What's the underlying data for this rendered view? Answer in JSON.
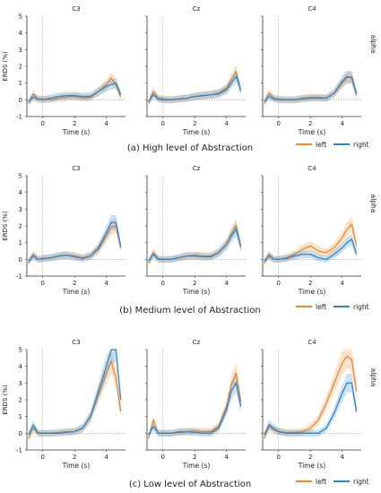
{
  "colors": {
    "left": "#f0882a",
    "right": "#2f86c7"
  },
  "chart_data": [
    {
      "type": "line",
      "caption": "(a) High level of Abstraction",
      "band_label": "alpha",
      "ylabel": "ERDS (%)",
      "xlabel": "Time (s)",
      "ylim": [
        -1,
        5
      ],
      "xlim": [
        -1,
        5.2
      ],
      "yticks": [
        "-1",
        "0",
        "1",
        "2",
        "3",
        "4",
        "5"
      ],
      "xticks": [
        "0",
        "2",
        "4"
      ],
      "legend": [
        "left",
        "right"
      ],
      "panels": [
        {
          "title": "C3",
          "x": [
            -0.9,
            -0.6,
            -0.3,
            0,
            0.5,
            1,
            1.5,
            2,
            2.5,
            3,
            3.5,
            4,
            4.3,
            4.6,
            4.9
          ],
          "left": [
            -0.2,
            0.35,
            0.05,
            0.05,
            0,
            0.1,
            0.15,
            0.2,
            0.1,
            0.15,
            0.5,
            0.9,
            1.3,
            0.9,
            0.2
          ],
          "right": [
            -0.1,
            0.15,
            0.05,
            0,
            0.1,
            0.2,
            0.25,
            0.25,
            0.2,
            0.2,
            0.5,
            0.8,
            0.9,
            1.0,
            0.3
          ]
        },
        {
          "title": "Cz",
          "x": [
            -0.9,
            -0.6,
            -0.3,
            0,
            0.5,
            1,
            1.5,
            2,
            2.5,
            3,
            3.5,
            4,
            4.3,
            4.6,
            4.9
          ],
          "left": [
            -0.2,
            0.5,
            0.1,
            0.05,
            0,
            0.05,
            0.1,
            0.2,
            0.25,
            0.3,
            0.4,
            0.7,
            1.2,
            1.7,
            0.5
          ],
          "right": [
            -0.1,
            0.3,
            0.05,
            0,
            0,
            0.05,
            0.1,
            0.2,
            0.25,
            0.3,
            0.35,
            0.6,
            1.0,
            1.4,
            0.6
          ]
        },
        {
          "title": "C4",
          "x": [
            -0.9,
            -0.6,
            -0.3,
            0,
            0.5,
            1,
            1.5,
            2,
            2.5,
            3,
            3.5,
            4,
            4.3,
            4.6,
            4.9
          ],
          "left": [
            -0.2,
            0.4,
            0.1,
            0.05,
            0,
            0,
            0.1,
            0.15,
            0.15,
            0.1,
            0.4,
            1.0,
            1.3,
            1.4,
            0.4
          ],
          "right": [
            -0.1,
            0.2,
            0.05,
            0,
            0,
            0,
            0.05,
            0.1,
            0.1,
            0.1,
            0.4,
            1.1,
            1.4,
            1.3,
            0.3
          ]
        }
      ]
    },
    {
      "type": "line",
      "caption": "(b) Medium level of Abstraction",
      "band_label": "alpha",
      "ylabel": "ERDS (%)",
      "xlabel": "Time (s)",
      "ylim": [
        -1,
        5
      ],
      "xlim": [
        -1,
        5.2
      ],
      "yticks": [
        "-1",
        "0",
        "1",
        "2",
        "3",
        "4",
        "5"
      ],
      "xticks": [
        "0",
        "2",
        "4"
      ],
      "legend": [
        "left",
        "right"
      ],
      "panels": [
        {
          "title": "C3",
          "x": [
            -0.9,
            -0.6,
            -0.3,
            0,
            0.5,
            1,
            1.5,
            2,
            2.5,
            3,
            3.5,
            4,
            4.3,
            4.6,
            4.9
          ],
          "left": [
            -0.2,
            0.3,
            0,
            0.05,
            0.1,
            0.2,
            0.25,
            0.2,
            0.1,
            0.2,
            0.6,
            1.4,
            1.9,
            2.0,
            0.8
          ],
          "right": [
            -0.1,
            0.2,
            0,
            0.05,
            0.1,
            0.2,
            0.25,
            0.15,
            0.05,
            0.2,
            0.7,
            1.6,
            2.2,
            2.2,
            0.7
          ]
        },
        {
          "title": "Cz",
          "x": [
            -0.9,
            -0.6,
            -0.3,
            0,
            0.5,
            1,
            1.5,
            2,
            2.5,
            3,
            3.5,
            4,
            4.3,
            4.6,
            4.9
          ],
          "left": [
            -0.2,
            0.4,
            0.05,
            0,
            0,
            0.1,
            0.2,
            0.25,
            0.2,
            0.2,
            0.4,
            0.9,
            1.5,
            2.0,
            0.7
          ],
          "right": [
            -0.1,
            0.3,
            0,
            0,
            0,
            0.1,
            0.2,
            0.2,
            0.15,
            0.15,
            0.4,
            0.9,
            1.4,
            1.8,
            0.8
          ]
        },
        {
          "title": "C4",
          "x": [
            -0.9,
            -0.6,
            -0.3,
            0,
            0.5,
            1,
            1.5,
            2,
            2.5,
            3,
            3.5,
            4,
            4.3,
            4.6,
            4.9
          ],
          "left": [
            -0.2,
            0.3,
            0,
            0,
            0.1,
            0.3,
            0.6,
            0.8,
            0.5,
            0.4,
            0.7,
            1.3,
            1.8,
            2.1,
            0.8
          ],
          "right": [
            -0.1,
            0.2,
            0,
            0,
            0.05,
            0.2,
            0.3,
            0.3,
            0.1,
            0.0,
            0.3,
            0.7,
            1.0,
            1.2,
            0.3
          ]
        }
      ]
    },
    {
      "type": "line",
      "caption": "(c) Low level of Abstraction",
      "band_label": "alpha",
      "ylabel": "ERDS (%)",
      "xlabel": "Time (s)",
      "ylim": [
        -1,
        5
      ],
      "xlim": [
        -1,
        5.2
      ],
      "yticks": [
        "-1",
        "0",
        "1",
        "2",
        "3",
        "4",
        "5"
      ],
      "xticks": [
        "0",
        "2",
        "4"
      ],
      "legend": [
        "left",
        "right"
      ],
      "panels": [
        {
          "title": "C3",
          "x": [
            -0.9,
            -0.6,
            -0.3,
            0,
            0.5,
            1,
            1.5,
            2,
            2.5,
            3,
            3.5,
            4,
            4.3,
            4.6,
            4.9
          ],
          "left": [
            -0.3,
            0.3,
            0,
            0,
            0,
            0.05,
            0.1,
            0.1,
            0.3,
            1.0,
            2.3,
            3.6,
            4.3,
            3.3,
            1.3
          ],
          "right": [
            -0.1,
            0.5,
            0,
            0,
            0,
            0,
            0.05,
            0.1,
            0.3,
            1.0,
            2.5,
            4.0,
            5.0,
            5.0,
            2.0
          ]
        },
        {
          "title": "Cz",
          "x": [
            -0.9,
            -0.6,
            -0.3,
            0,
            0.5,
            1,
            1.5,
            2,
            2.5,
            3,
            3.5,
            4,
            4.3,
            4.6,
            4.9
          ],
          "left": [
            -0.3,
            0.8,
            0,
            0,
            0,
            0.1,
            0.1,
            0.15,
            0.1,
            0.1,
            0.4,
            1.6,
            2.9,
            3.6,
            1.9
          ],
          "right": [
            -0.1,
            0.4,
            0,
            0,
            0,
            0.05,
            0.1,
            0.05,
            0,
            0,
            0.3,
            1.4,
            2.5,
            3.0,
            1.6
          ]
        },
        {
          "title": "C4",
          "x": [
            -0.9,
            -0.6,
            -0.3,
            0,
            0.5,
            1,
            1.5,
            2,
            2.5,
            3,
            3.5,
            4,
            4.3,
            4.6,
            4.9
          ],
          "left": [
            -0.3,
            0.4,
            0.2,
            0.1,
            0.05,
            0.05,
            0.1,
            0.3,
            0.8,
            1.8,
            3.0,
            4.2,
            4.6,
            4.4,
            2.5
          ],
          "right": [
            -0.1,
            0.5,
            0.3,
            0.1,
            0,
            0,
            0,
            0,
            0,
            0.3,
            1.2,
            2.4,
            3.0,
            3.0,
            1.3
          ]
        }
      ]
    }
  ]
}
